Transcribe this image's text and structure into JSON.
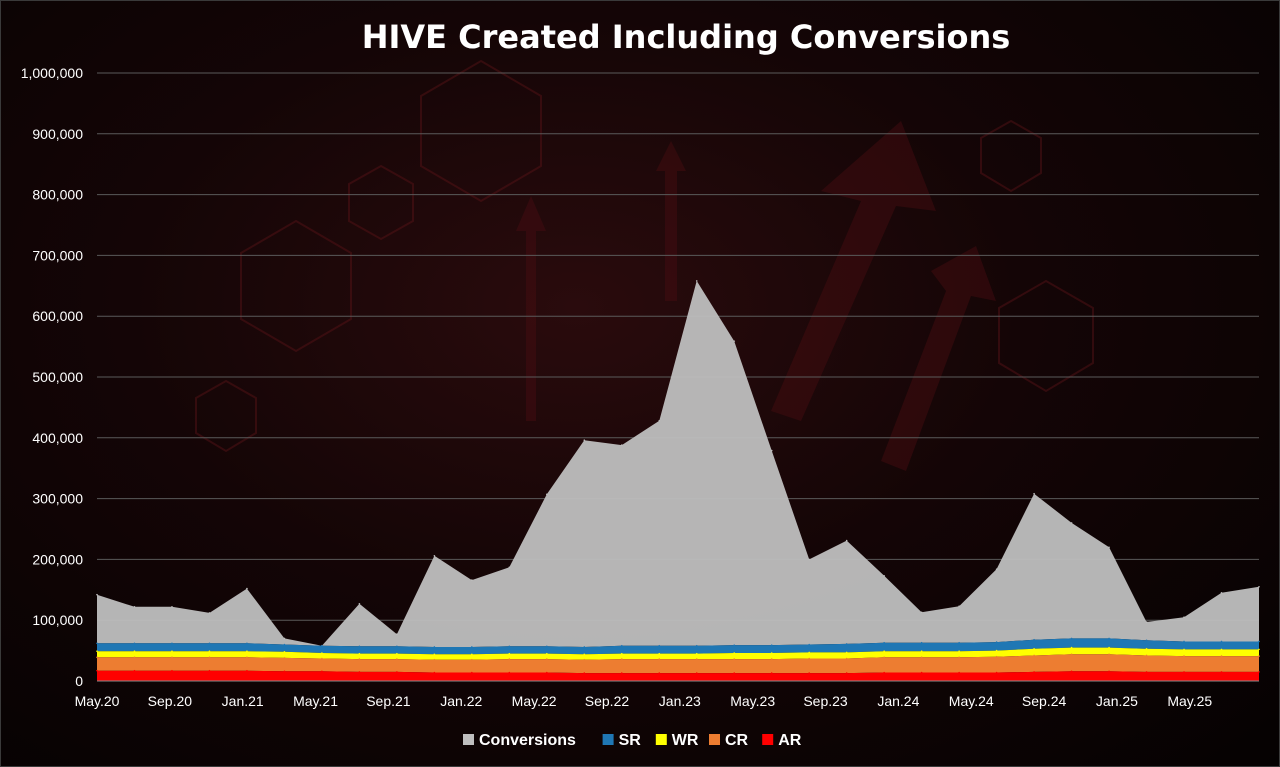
{
  "chart_data": {
    "type": "area",
    "title": "HIVE Created Including Conversions",
    "xlabel": "",
    "ylabel": "",
    "ylim": [
      0,
      1000000
    ],
    "grid": true,
    "legend_position": "bottom",
    "y_ticks": [
      {
        "value": 0,
        "label": "0"
      },
      {
        "value": 100000,
        "label": "100,000"
      },
      {
        "value": 200000,
        "label": "200,000"
      },
      {
        "value": 300000,
        "label": "300,000"
      },
      {
        "value": 400000,
        "label": "400,000"
      },
      {
        "value": 500000,
        "label": "500,000"
      },
      {
        "value": 600000,
        "label": "600,000"
      },
      {
        "value": 700000,
        "label": "700,000"
      },
      {
        "value": 800000,
        "label": "800,000"
      },
      {
        "value": 900000,
        "label": "900,000"
      },
      {
        "value": 1000000,
        "label": "1,000,000"
      }
    ],
    "x_tick_labels": [
      "May.20",
      "Sep.20",
      "Jan.21",
      "May.21",
      "Sep.21",
      "Jan.22",
      "May.22",
      "Sep.22",
      "Jan.23",
      "May.23",
      "Sep.23",
      "Jan.24",
      "May.24",
      "Sep.24",
      "Jan.25",
      "May.25"
    ],
    "x": [
      "May.20",
      "Jul.20",
      "Sep.20",
      "Nov.20",
      "Jan.21",
      "Mar.21",
      "May.21",
      "Jul.21",
      "Sep.21",
      "Nov.21",
      "Jan.22",
      "Mar.22",
      "May.22",
      "Jul.22",
      "Sep.22",
      "Nov.22",
      "Jan.23",
      "Mar.23",
      "May.23",
      "Jul.23",
      "Sep.23",
      "Nov.23",
      "Jan.24",
      "Mar.24",
      "May.24",
      "Jul.24",
      "Sep.24",
      "Nov.24",
      "Jan.25",
      "Mar.25",
      "May.25",
      "Jul.25"
    ],
    "series": [
      {
        "name": "AR",
        "color": "#ff0000",
        "values": [
          17000,
          17000,
          17000,
          17000,
          17000,
          16000,
          16000,
          15000,
          15000,
          14000,
          14000,
          14000,
          14000,
          13000,
          13000,
          13000,
          13000,
          13000,
          13000,
          13000,
          13000,
          14000,
          14000,
          14000,
          14000,
          15000,
          16000,
          16000,
          15000,
          15000,
          15000,
          15000
        ]
      },
      {
        "name": "CR",
        "color": "#ed7d31",
        "values": [
          22000,
          22000,
          22000,
          22000,
          22000,
          22000,
          21000,
          21000,
          21000,
          21000,
          21000,
          22000,
          22000,
          22000,
          23000,
          23000,
          23000,
          23000,
          23000,
          24000,
          24000,
          25000,
          25000,
          25000,
          26000,
          27000,
          28000,
          28000,
          27000,
          26000,
          26000,
          26000
        ]
      },
      {
        "name": "WR",
        "color": "#ffff00",
        "values": [
          10000,
          10000,
          10000,
          10000,
          10000,
          10000,
          9000,
          9000,
          9000,
          9000,
          9000,
          9000,
          9000,
          9000,
          9000,
          9000,
          9000,
          10000,
          10000,
          10000,
          10000,
          10000,
          10000,
          10000,
          10000,
          11000,
          11000,
          11000,
          11000,
          11000,
          11000,
          11000
        ]
      },
      {
        "name": "SR",
        "color": "#1f77b4",
        "values": [
          13000,
          13000,
          13000,
          13000,
          13000,
          12000,
          12000,
          12000,
          12000,
          12000,
          12000,
          12000,
          12000,
          12000,
          13000,
          13000,
          13000,
          13000,
          13000,
          13000,
          14000,
          14000,
          14000,
          14000,
          14000,
          15000,
          15000,
          15000,
          14000,
          13000,
          13000,
          13000
        ]
      },
      {
        "name": "Conversions",
        "color": "#bfbfbf",
        "values": [
          80000,
          60000,
          60000,
          50000,
          90000,
          10000,
          0,
          70000,
          20000,
          150000,
          110000,
          130000,
          250000,
          340000,
          330000,
          370000,
          600000,
          500000,
          320000,
          140000,
          170000,
          110000,
          50000,
          60000,
          120000,
          240000,
          190000,
          150000,
          30000,
          40000,
          80000,
          90000
        ]
      }
    ]
  },
  "legend": [
    {
      "name": "Conversions",
      "color": "#bfbfbf"
    },
    {
      "name": "SR",
      "color": "#1f77b4"
    },
    {
      "name": "WR",
      "color": "#ffff00"
    },
    {
      "name": "CR",
      "color": "#ed7d31"
    },
    {
      "name": "AR",
      "color": "#ff0000"
    }
  ]
}
